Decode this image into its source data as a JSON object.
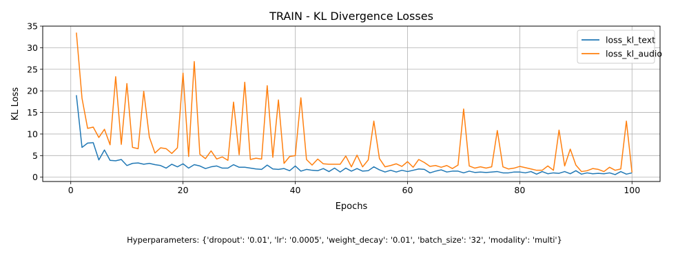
{
  "chart_data": {
    "type": "line",
    "title": "TRAIN - KL Divergence Losses",
    "xlabel": "Epochs",
    "ylabel": "KL Loss",
    "xlim": [
      -5,
      105
    ],
    "ylim": [
      -1,
      35
    ],
    "xticks": [
      0,
      20,
      40,
      60,
      80,
      100
    ],
    "yticks": [
      0,
      5,
      10,
      15,
      20,
      25,
      30,
      35
    ],
    "grid": true,
    "legend_position": "top-right",
    "x": [
      1,
      2,
      3,
      4,
      5,
      6,
      7,
      8,
      9,
      10,
      11,
      12,
      13,
      14,
      15,
      16,
      17,
      18,
      19,
      20,
      21,
      22,
      23,
      24,
      25,
      26,
      27,
      28,
      29,
      30,
      31,
      32,
      33,
      34,
      35,
      36,
      37,
      38,
      39,
      40,
      41,
      42,
      43,
      44,
      45,
      46,
      47,
      48,
      49,
      50,
      51,
      52,
      53,
      54,
      55,
      56,
      57,
      58,
      59,
      60,
      61,
      62,
      63,
      64,
      65,
      66,
      67,
      68,
      69,
      70,
      71,
      72,
      73,
      74,
      75,
      76,
      77,
      78,
      79,
      80,
      81,
      82,
      83,
      84,
      85,
      86,
      87,
      88,
      89,
      90,
      91,
      92,
      93,
      94,
      95,
      96,
      97,
      98,
      99,
      100
    ],
    "series": [
      {
        "name": "loss_kl_text",
        "color": "#1f77b4",
        "values": [
          19.0,
          6.9,
          7.9,
          8.0,
          4.0,
          6.3,
          3.9,
          3.8,
          4.1,
          2.7,
          3.2,
          3.3,
          3.0,
          3.2,
          2.9,
          2.7,
          2.1,
          3.0,
          2.4,
          3.1,
          2.1,
          2.9,
          2.6,
          2.0,
          2.4,
          2.6,
          2.1,
          2.1,
          2.9,
          2.3,
          2.3,
          2.1,
          1.9,
          1.8,
          2.8,
          1.9,
          1.8,
          2.0,
          1.5,
          2.6,
          1.4,
          1.8,
          1.6,
          1.5,
          2.0,
          1.3,
          2.1,
          1.2,
          2.1,
          1.4,
          2.0,
          1.4,
          1.5,
          2.4,
          1.7,
          1.2,
          1.6,
          1.2,
          1.6,
          1.3,
          1.6,
          1.9,
          1.8,
          1.0,
          1.4,
          1.7,
          1.2,
          1.4,
          1.4,
          1.0,
          1.4,
          1.1,
          1.2,
          1.1,
          1.2,
          1.3,
          1.0,
          1.0,
          1.2,
          1.2,
          1.0,
          1.3,
          0.7,
          1.3,
          0.8,
          1.0,
          0.9,
          1.3,
          0.8,
          1.5,
          0.7,
          1.0,
          0.8,
          0.9,
          0.8,
          1.0,
          0.6,
          1.3,
          0.7,
          1.0
        ]
      },
      {
        "name": "loss_kl_audio",
        "color": "#ff7f0e",
        "values": [
          33.5,
          18.3,
          11.3,
          11.6,
          9.2,
          11.1,
          7.5,
          23.3,
          7.6,
          21.7,
          6.9,
          6.6,
          19.9,
          9.3,
          5.6,
          6.8,
          6.6,
          5.5,
          6.8,
          24.1,
          4.8,
          26.8,
          5.3,
          4.3,
          6.1,
          4.2,
          4.7,
          3.9,
          17.4,
          5.2,
          22.0,
          4.1,
          4.4,
          4.2,
          21.2,
          4.6,
          17.9,
          3.2,
          4.8,
          5.0,
          18.4,
          4.1,
          2.8,
          4.2,
          3.1,
          3.0,
          3.0,
          3.0,
          4.9,
          2.4,
          5.1,
          2.4,
          4.0,
          13.0,
          4.3,
          2.4,
          2.7,
          3.1,
          2.5,
          3.6,
          2.3,
          4.1,
          3.4,
          2.5,
          2.7,
          2.3,
          2.7,
          2.0,
          2.8,
          15.8,
          2.6,
          2.1,
          2.4,
          2.1,
          2.4,
          10.8,
          2.4,
          1.9,
          2.1,
          2.5,
          2.2,
          1.9,
          1.6,
          1.6,
          2.6,
          1.6,
          10.9,
          2.6,
          6.5,
          2.8,
          1.3,
          1.5,
          2.0,
          1.8,
          1.3,
          2.3,
          1.6,
          1.9,
          13.0,
          1.1
        ]
      }
    ]
  },
  "footnote": "Hyperparameters: {'dropout': '0.01', 'lr': '0.0005', 'weight_decay': '0.01', 'batch_size': '32', 'modality': 'multi'}"
}
